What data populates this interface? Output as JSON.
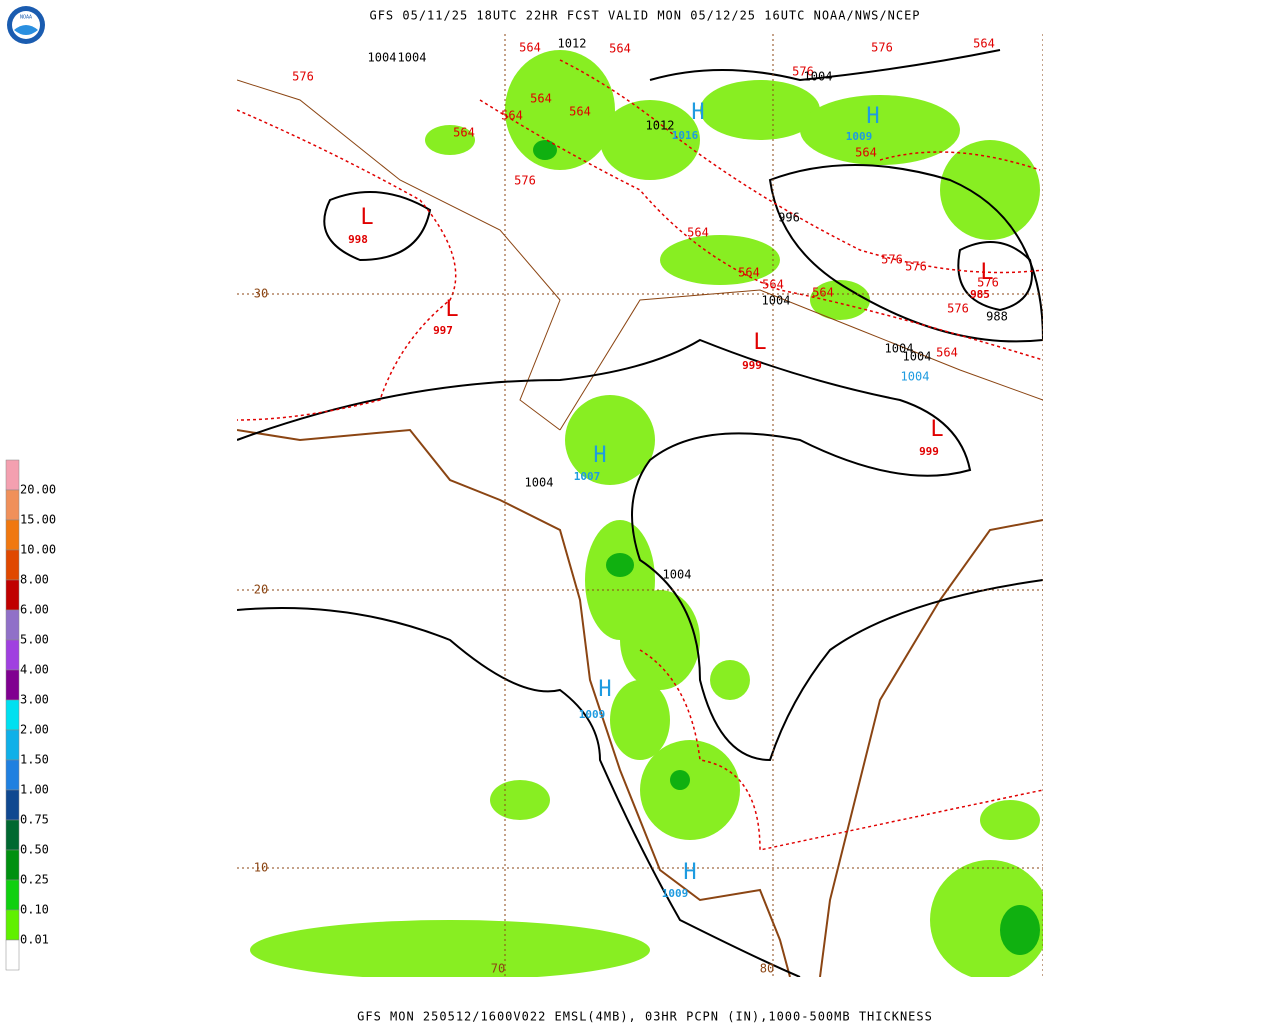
{
  "header": {
    "title": "GFS 05/11/25 18UTC 22HR FCST VALID MON 05/12/25 16UTC NOAA/NWS/NCEP",
    "logo": "NOAA"
  },
  "footer": {
    "caption": "GFS MON 250512/1600V022 EMSL(4MB), 03HR PCPN (IN),1000-500MB THICKNESS"
  },
  "legend": {
    "labels": [
      "20.00",
      "15.00",
      "10.00",
      "8.00",
      "6.00",
      "5.00",
      "4.00",
      "3.00",
      "2.00",
      "1.50",
      "1.00",
      "0.75",
      "0.50",
      "0.25",
      "0.10",
      "0.01"
    ]
  },
  "map": {
    "lat_labels": [
      "30",
      "20",
      "10"
    ],
    "lon_labels": [
      "70",
      "80"
    ],
    "centers": [
      {
        "symbol": "L",
        "value": "998"
      },
      {
        "symbol": "L",
        "value": "997"
      },
      {
        "symbol": "H",
        "value": "1016"
      },
      {
        "symbol": "H",
        "value": "1009"
      },
      {
        "symbol": "L",
        "value": "999"
      },
      {
        "symbol": "L",
        "value": "999"
      },
      {
        "symbol": "H",
        "value": "1007"
      },
      {
        "symbol": "L",
        "value": "985"
      },
      {
        "symbol": "H",
        "value": "1009"
      },
      {
        "symbol": "H",
        "value": "1009"
      }
    ],
    "contour_labels": [
      "564",
      "1012",
      "564",
      "576",
      "564",
      "1004",
      "1004",
      "576",
      "576",
      "1004",
      "564",
      "564",
      "564",
      "1012",
      "564",
      "564",
      "576",
      "996",
      "564",
      "576",
      "576",
      "564",
      "564",
      "564",
      "1004",
      "576",
      "576",
      "988",
      "1004",
      "1004",
      "564",
      "1004",
      "1004",
      "1004"
    ]
  }
}
